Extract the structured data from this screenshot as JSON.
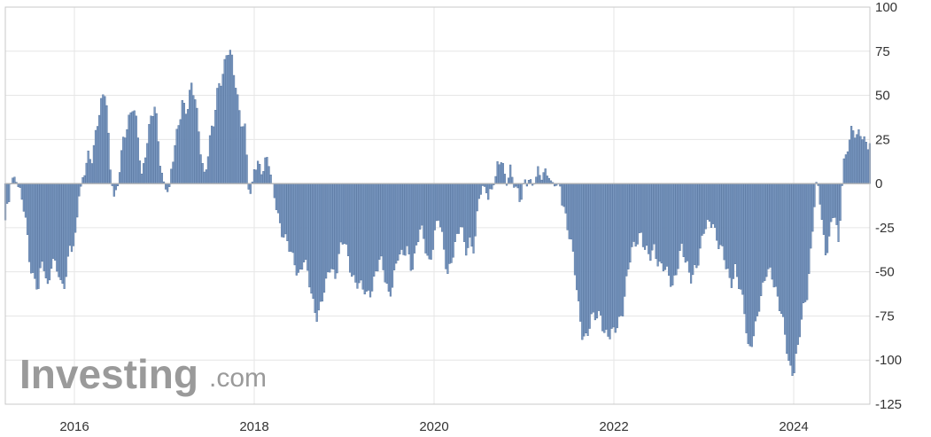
{
  "watermark": {
    "brand": "Investing",
    "suffix": ".com"
  },
  "colors": {
    "bar_fill": "#7a98c0",
    "bar_stroke": "#4a6a96",
    "grid": "#e6e6e6",
    "zero_line": "#b0b0b0",
    "frame": "#c8c8c8"
  },
  "chart_data": {
    "type": "bar",
    "title": "",
    "xlabel": "",
    "ylabel": "",
    "grid": true,
    "ylim": [
      -125,
      100
    ],
    "y_ticks": [
      "100",
      "75",
      "50",
      "25",
      "0",
      "-25",
      "-50",
      "-75",
      "-100",
      "-125"
    ],
    "x_ticks": [
      "2016",
      "2018",
      "2020",
      "2022",
      "2024"
    ],
    "xlim": [
      2015.15,
      2024.85
    ],
    "x_step": 0.0205,
    "keyframes": [
      [
        2015.15,
        -25
      ],
      [
        2015.2,
        -42
      ],
      [
        2015.25,
        -15
      ],
      [
        2015.3,
        4
      ],
      [
        2015.35,
        6
      ],
      [
        2015.4,
        -10
      ],
      [
        2015.45,
        -18
      ],
      [
        2015.5,
        -40
      ],
      [
        2015.55,
        -52
      ],
      [
        2015.6,
        -62
      ],
      [
        2015.65,
        -45
      ],
      [
        2015.7,
        -58
      ],
      [
        2015.75,
        -40
      ],
      [
        2015.8,
        -48
      ],
      [
        2015.85,
        -62
      ],
      [
        2015.9,
        -55
      ],
      [
        2015.95,
        -30
      ],
      [
        2016.0,
        -38
      ],
      [
        2016.05,
        -10
      ],
      [
        2016.1,
        5
      ],
      [
        2016.15,
        20
      ],
      [
        2016.2,
        15
      ],
      [
        2016.25,
        28
      ],
      [
        2016.3,
        45
      ],
      [
        2016.35,
        58
      ],
      [
        2016.4,
        10
      ],
      [
        2016.45,
        -15
      ],
      [
        2016.5,
        5
      ],
      [
        2016.55,
        30
      ],
      [
        2016.6,
        38
      ],
      [
        2016.65,
        42
      ],
      [
        2016.7,
        28
      ],
      [
        2016.75,
        5
      ],
      [
        2016.8,
        25
      ],
      [
        2016.85,
        36
      ],
      [
        2016.9,
        40
      ],
      [
        2016.95,
        15
      ],
      [
        2017.0,
        0
      ],
      [
        2017.05,
        -5
      ],
      [
        2017.1,
        12
      ],
      [
        2017.15,
        30
      ],
      [
        2017.2,
        50
      ],
      [
        2017.25,
        42
      ],
      [
        2017.3,
        52
      ],
      [
        2017.35,
        45
      ],
      [
        2017.4,
        25
      ],
      [
        2017.45,
        5
      ],
      [
        2017.5,
        20
      ],
      [
        2017.55,
        32
      ],
      [
        2017.6,
        58
      ],
      [
        2017.65,
        65
      ],
      [
        2017.7,
        74
      ],
      [
        2017.75,
        68
      ],
      [
        2017.8,
        55
      ],
      [
        2017.85,
        40
      ],
      [
        2017.9,
        30
      ],
      [
        2017.95,
        -15
      ],
      [
        2018.0,
        10
      ],
      [
        2018.05,
        15
      ],
      [
        2018.1,
        8
      ],
      [
        2018.15,
        12
      ],
      [
        2018.2,
        0
      ],
      [
        2018.25,
        -10
      ],
      [
        2018.3,
        -25
      ],
      [
        2018.35,
        -35
      ],
      [
        2018.4,
        -40
      ],
      [
        2018.45,
        -42
      ],
      [
        2018.5,
        -50
      ],
      [
        2018.55,
        -45
      ],
      [
        2018.6,
        -55
      ],
      [
        2018.65,
        -65
      ],
      [
        2018.7,
        -72
      ],
      [
        2018.75,
        -68
      ],
      [
        2018.8,
        -60
      ],
      [
        2018.85,
        -45
      ],
      [
        2018.9,
        -50
      ],
      [
        2018.95,
        -38
      ],
      [
        2019.0,
        -35
      ],
      [
        2019.05,
        -45
      ],
      [
        2019.1,
        -50
      ],
      [
        2019.15,
        -55
      ],
      [
        2019.2,
        -62
      ],
      [
        2019.25,
        -65
      ],
      [
        2019.3,
        -58
      ],
      [
        2019.35,
        -48
      ],
      [
        2019.4,
        -45
      ],
      [
        2019.45,
        -55
      ],
      [
        2019.5,
        -62
      ],
      [
        2019.55,
        -50
      ],
      [
        2019.6,
        -42
      ],
      [
        2019.65,
        -45
      ],
      [
        2019.7,
        -35
      ],
      [
        2019.75,
        -45
      ],
      [
        2019.8,
        -38
      ],
      [
        2019.85,
        -28
      ],
      [
        2019.9,
        -35
      ],
      [
        2019.95,
        -42
      ],
      [
        2020.0,
        -30
      ],
      [
        2020.05,
        -22
      ],
      [
        2020.1,
        -35
      ],
      [
        2020.15,
        -48
      ],
      [
        2020.2,
        -40
      ],
      [
        2020.25,
        -35
      ],
      [
        2020.3,
        -25
      ],
      [
        2020.35,
        -35
      ],
      [
        2020.4,
        -30
      ],
      [
        2020.45,
        -40
      ],
      [
        2020.5,
        -10
      ],
      [
        2020.55,
        0
      ],
      [
        2020.6,
        -5
      ],
      [
        2020.65,
        -3
      ],
      [
        2020.7,
        5
      ],
      [
        2020.75,
        15
      ],
      [
        2020.8,
        5
      ],
      [
        2020.85,
        8
      ],
      [
        2020.9,
        -5
      ],
      [
        2020.95,
        -10
      ],
      [
        2021.0,
        2
      ],
      [
        2021.05,
        5
      ],
      [
        2021.1,
        -3
      ],
      [
        2021.15,
        5
      ],
      [
        2021.2,
        8
      ],
      [
        2021.25,
        10
      ],
      [
        2021.3,
        0
      ],
      [
        2021.35,
        -2
      ],
      [
        2021.4,
        0
      ],
      [
        2021.45,
        -12
      ],
      [
        2021.5,
        -30
      ],
      [
        2021.55,
        -45
      ],
      [
        2021.6,
        -65
      ],
      [
        2021.65,
        -82
      ],
      [
        2021.7,
        -88
      ],
      [
        2021.75,
        -80
      ],
      [
        2021.8,
        -75
      ],
      [
        2021.85,
        -70
      ],
      [
        2021.9,
        -85
      ],
      [
        2021.95,
        -90
      ],
      [
        2022.0,
        -85
      ],
      [
        2022.05,
        -75
      ],
      [
        2022.1,
        -70
      ],
      [
        2022.15,
        -55
      ],
      [
        2022.2,
        -40
      ],
      [
        2022.25,
        -30
      ],
      [
        2022.3,
        -25
      ],
      [
        2022.35,
        -40
      ],
      [
        2022.4,
        -45
      ],
      [
        2022.45,
        -35
      ],
      [
        2022.5,
        -42
      ],
      [
        2022.55,
        -48
      ],
      [
        2022.6,
        -55
      ],
      [
        2022.65,
        -58
      ],
      [
        2022.7,
        -45
      ],
      [
        2022.75,
        -35
      ],
      [
        2022.8,
        -48
      ],
      [
        2022.85,
        -55
      ],
      [
        2022.9,
        -45
      ],
      [
        2022.95,
        -40
      ],
      [
        2023.0,
        -30
      ],
      [
        2023.05,
        -25
      ],
      [
        2023.1,
        -18
      ],
      [
        2023.15,
        -30
      ],
      [
        2023.2,
        -40
      ],
      [
        2023.25,
        -50
      ],
      [
        2023.3,
        -55
      ],
      [
        2023.35,
        -45
      ],
      [
        2023.4,
        -60
      ],
      [
        2023.45,
        -75
      ],
      [
        2023.5,
        -95
      ],
      [
        2023.55,
        -82
      ],
      [
        2023.6,
        -75
      ],
      [
        2023.65,
        -65
      ],
      [
        2023.7,
        -50
      ],
      [
        2023.75,
        -45
      ],
      [
        2023.8,
        -60
      ],
      [
        2023.85,
        -75
      ],
      [
        2023.9,
        -85
      ],
      [
        2023.95,
        -100
      ],
      [
        2024.0,
        -105
      ],
      [
        2024.05,
        -95
      ],
      [
        2024.1,
        -75
      ],
      [
        2024.15,
        -60
      ],
      [
        2024.2,
        -30
      ],
      [
        2024.25,
        0
      ],
      [
        2024.3,
        -15
      ],
      [
        2024.35,
        -40
      ],
      [
        2024.4,
        -25
      ],
      [
        2024.45,
        -15
      ],
      [
        2024.5,
        -40
      ],
      [
        2024.55,
        10
      ],
      [
        2024.6,
        25
      ],
      [
        2024.65,
        32
      ],
      [
        2024.7,
        22
      ],
      [
        2024.75,
        28
      ],
      [
        2024.85,
        25
      ]
    ]
  }
}
